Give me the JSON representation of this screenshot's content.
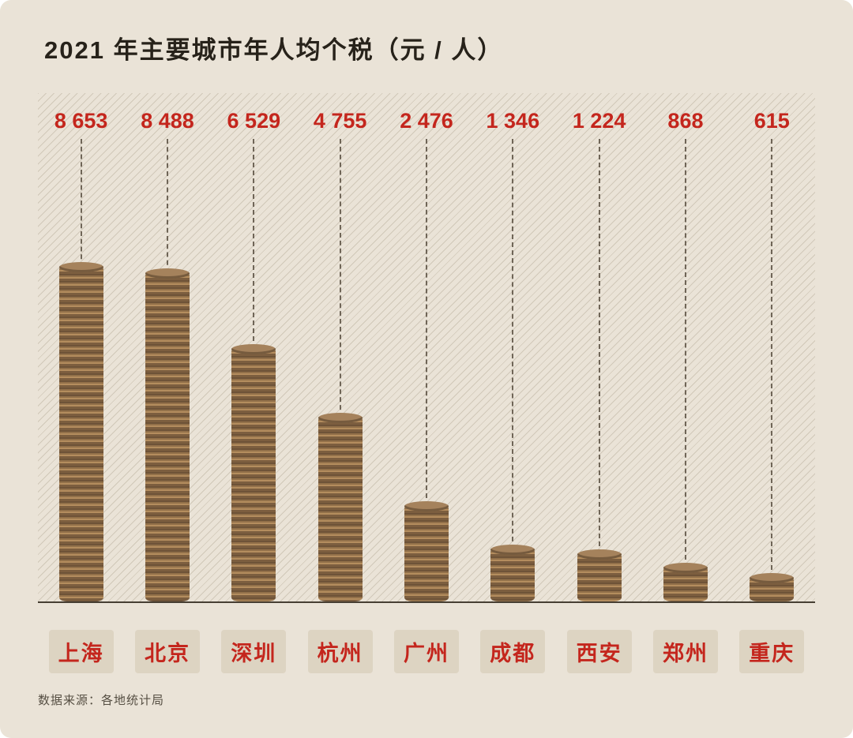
{
  "page": {
    "title": "2021 年主要城市年人均个税（元 / 人）",
    "source": "数据来源：各地统计局"
  },
  "chart_data": {
    "type": "bar",
    "title": "2021 年主要城市年人均个税（元 / 人）",
    "categories": [
      "上海",
      "北京",
      "深圳",
      "杭州",
      "广州",
      "成都",
      "西安",
      "郑州",
      "重庆"
    ],
    "values": [
      8653,
      8488,
      6529,
      4755,
      2476,
      1346,
      1224,
      868,
      615
    ],
    "value_labels": [
      "8 653",
      "8 488",
      "6 529",
      "4 755",
      "2 476",
      "1 346",
      "1 224",
      "868",
      "615"
    ],
    "unit": "元/人",
    "ylim": [
      0,
      9000
    ],
    "grid": "diagonal-hatch",
    "legend": "none",
    "source": "数据来源：各地统计局",
    "colors": {
      "background": "#eae3d7",
      "value_text": "#c4261d",
      "label_text": "#c4261d",
      "label_tag_bg": "#ddd4c2",
      "coin_dark": "#6e5338",
      "coin_light": "#b48d5e",
      "title_text": "#27221a",
      "baseline": "#473f33"
    }
  }
}
